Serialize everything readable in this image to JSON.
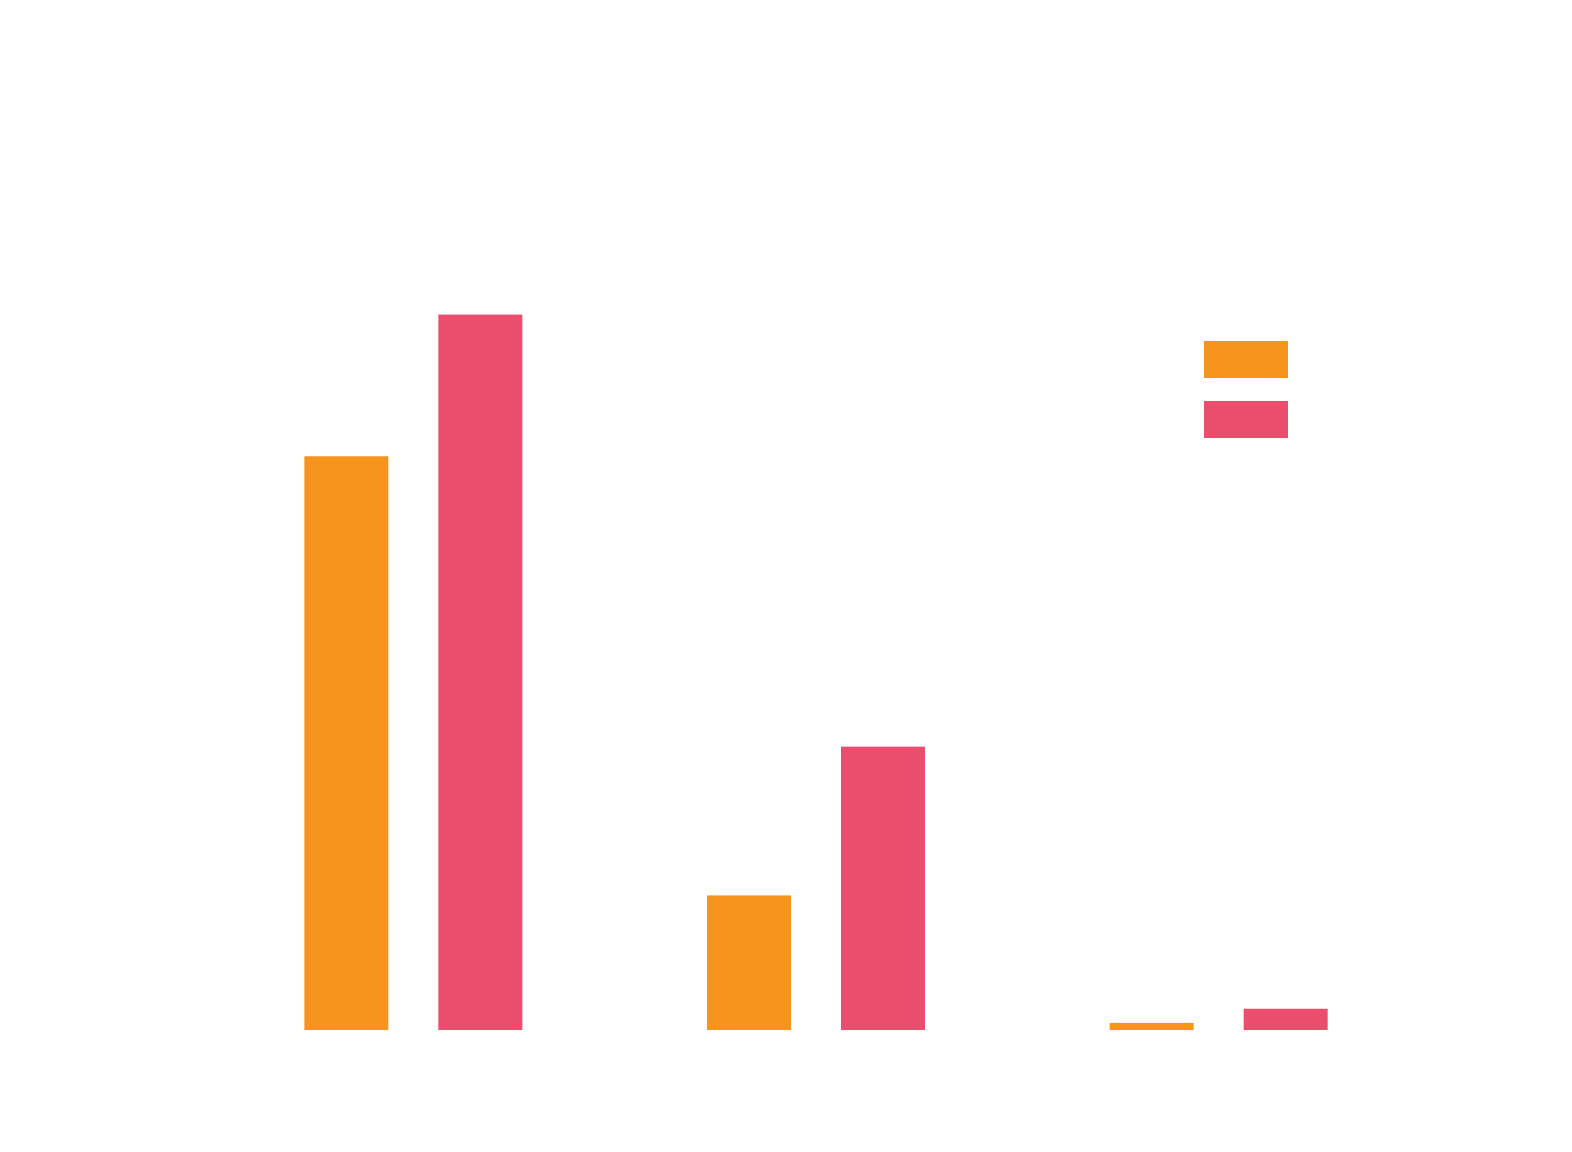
{
  "chart_data": {
    "type": "bar",
    "categories": [
      "",
      "",
      ""
    ],
    "series": [
      {
        "values": [
          81,
          19,
          1
        ],
        "color": "#F7941E"
      },
      {
        "values": [
          101,
          40,
          3
        ],
        "color": "#EB4D6C"
      }
    ],
    "ylim": [
      0,
      120
    ],
    "grid": false,
    "legend": "top-right",
    "title": "",
    "xlabel": "",
    "ylabel": ""
  }
}
